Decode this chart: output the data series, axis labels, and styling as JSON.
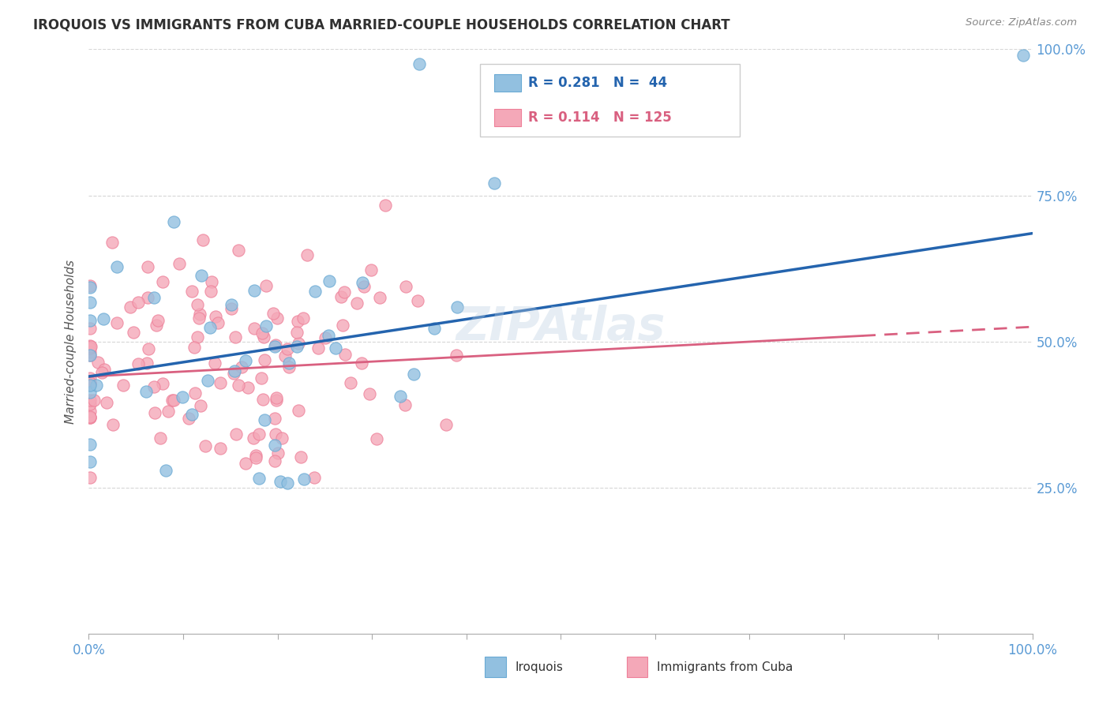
{
  "title": "IROQUOIS VS IMMIGRANTS FROM CUBA MARRIED-COUPLE HOUSEHOLDS CORRELATION CHART",
  "source": "Source: ZipAtlas.com",
  "ylabel": "Married-couple Households",
  "xlim": [
    0,
    1.0
  ],
  "ylim": [
    0,
    1.0
  ],
  "legend_r1": "R = 0.281",
  "legend_n1": "N =  44",
  "legend_r2": "R = 0.114",
  "legend_n2": "N = 125",
  "legend_label1": "Iroquois",
  "legend_label2": "Immigrants from Cuba",
  "blue_color": "#92C0E0",
  "blue_edge_color": "#6AAAD4",
  "pink_color": "#F4A8B8",
  "pink_edge_color": "#EE8099",
  "blue_line_color": "#2464AE",
  "pink_line_color": "#D96080",
  "title_color": "#303030",
  "axis_color": "#5B9BD5",
  "grid_color": "#CCCCCC",
  "background_color": "#FFFFFF",
  "watermark": "ZIPAtlas",
  "blue_trend": [
    0.44,
    0.685
  ],
  "pink_trend": [
    0.44,
    0.525
  ],
  "blue_seed": 42,
  "pink_seed": 7,
  "n_blue": 44,
  "n_pink": 125,
  "r_blue": 0.281,
  "r_pink": 0.114
}
